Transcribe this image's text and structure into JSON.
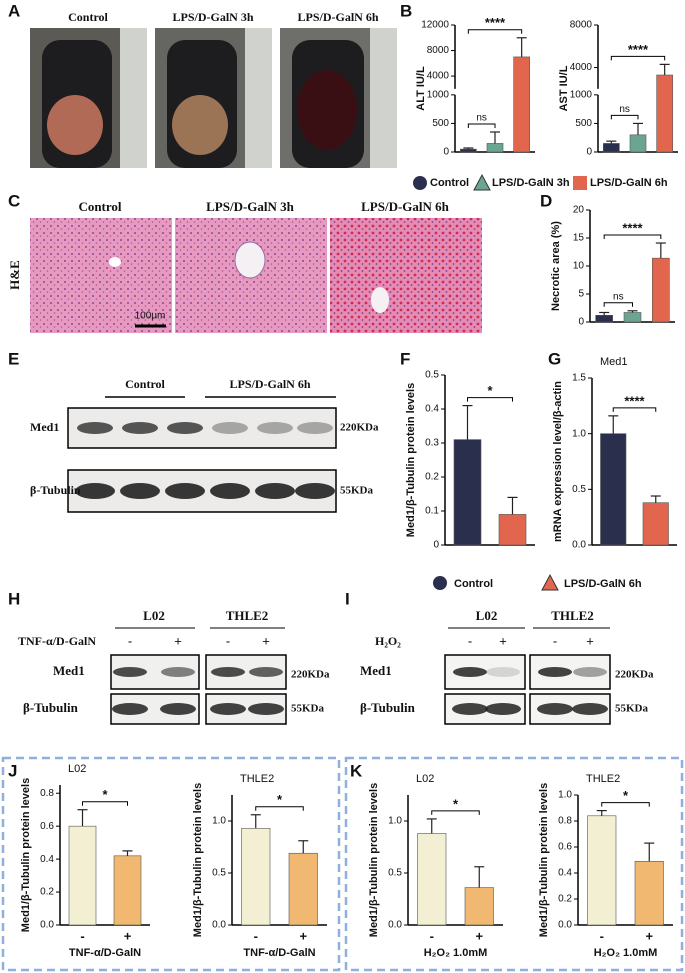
{
  "panel_labels": [
    "A",
    "B",
    "C",
    "D",
    "E",
    "F",
    "G",
    "H",
    "I",
    "J",
    "K"
  ],
  "photos": {
    "labels": [
      "Control",
      "LPS/D-GalN 3h",
      "LPS/D-GalN 6h"
    ]
  },
  "histology": {
    "labels": [
      "Control",
      "LPS/D-GalN 3h",
      "LPS/D-GalN 6h"
    ],
    "stain": "H&E",
    "scale_bar": "100μm"
  },
  "legend_b": [
    {
      "name": "Control",
      "color": "#2b2f4e"
    },
    {
      "name": "LPS/D-GalN 3h",
      "color": "#6aa58f"
    },
    {
      "name": "LPS/D-GalN 6h",
      "color": "#e2664d"
    }
  ],
  "blot_e": {
    "groups": [
      "Control",
      "LPS/D-GalN 6h"
    ],
    "rows": [
      "Med1",
      "β-Tubulin"
    ],
    "sizes": [
      "220KDa",
      "55KDa"
    ]
  },
  "legend_fg": [
    {
      "name": "Control",
      "color": "#2b2f4e"
    },
    {
      "name": "LPS/D-GalN 6h",
      "color": "#e2664d"
    }
  ],
  "blot_h": {
    "lanes": [
      "L02",
      "THLE2"
    ],
    "treatment": "TNF-α/D-GalN",
    "signs": [
      "-",
      "+",
      "-",
      "+"
    ],
    "rows": [
      "Med1",
      "β-Tubulin"
    ],
    "sizes": [
      "220KDa",
      "55KDa"
    ]
  },
  "blot_i": {
    "lanes": [
      "L02",
      "THLE2"
    ],
    "treatment": "H₂O₂",
    "signs": [
      "-",
      "+",
      "-",
      "+"
    ],
    "rows": [
      "Med1",
      "β-Tubulin"
    ],
    "sizes": [
      "220KDa",
      "55KDa"
    ]
  },
  "chart_data": [
    {
      "type": "bar",
      "ylabel": "ALT IU/L",
      "categories": [
        null,
        null,
        null
      ],
      "values": [
        50,
        150,
        7000
      ],
      "errors": [
        20,
        200,
        3000
      ],
      "colors": [
        "#2b2f4e",
        "#6aa58f",
        "#e2664d"
      ],
      "ylim": [
        0,
        12000
      ],
      "ybreak": [
        1000,
        2000
      ],
      "yticks": [
        0,
        500,
        1000,
        4000,
        8000,
        12000
      ],
      "annotations": [
        "ns",
        "****"
      ]
    },
    {
      "type": "bar",
      "ylabel": "AST IU/L",
      "categories": [
        null,
        null,
        null
      ],
      "values": [
        150,
        300,
        3300
      ],
      "errors": [
        40,
        200,
        1000
      ],
      "colors": [
        "#2b2f4e",
        "#6aa58f",
        "#e2664d"
      ],
      "ylim": [
        0,
        8000
      ],
      "ybreak": [
        1000,
        2000
      ],
      "yticks": [
        0,
        500,
        1000,
        4000,
        8000
      ],
      "annotations": [
        "ns",
        "****"
      ]
    },
    {
      "type": "bar",
      "ylabel": "Necrotic area (%)",
      "categories": [
        null,
        null,
        null
      ],
      "values": [
        1.2,
        1.7,
        11.4
      ],
      "errors": [
        0.5,
        0.3,
        2.7
      ],
      "colors": [
        "#2b2f4e",
        "#6aa58f",
        "#e2664d"
      ],
      "ylim": [
        0,
        20
      ],
      "yticks": [
        0,
        5,
        10,
        15,
        20
      ],
      "annotations": [
        "ns",
        "****"
      ]
    },
    {
      "type": "bar",
      "ylabel": "Med1/β-Tubulin protein levels",
      "categories": [
        null,
        null
      ],
      "values": [
        0.31,
        0.09
      ],
      "errors": [
        0.1,
        0.05
      ],
      "colors": [
        "#2b2f4e",
        "#e2664d"
      ],
      "ylim": [
        0,
        0.5
      ],
      "yticks": [
        0,
        0.1,
        0.2,
        0.3,
        0.4,
        0.5
      ],
      "annotations": [
        "*"
      ]
    },
    {
      "type": "bar",
      "title": "Med1",
      "ylabel": "mRNA expression level/β-actin",
      "categories": [
        null,
        null
      ],
      "values": [
        1.0,
        0.38
      ],
      "errors": [
        0.16,
        0.06
      ],
      "colors": [
        "#2b2f4e",
        "#e2664d"
      ],
      "ylim": [
        0,
        1.5
      ],
      "yticks": [
        {
          "value": 0,
          "label": "0.0"
        },
        0.5,
        {
          "value": 1,
          "label": "1.0"
        },
        1.5
      ],
      "annotations": [
        "****"
      ]
    },
    {
      "type": "bar",
      "title": "L02",
      "ylabel": "Med1/β-Tubulin protein levels",
      "xlabel": "TNF-α/D-GalN",
      "categories": [
        "-",
        "+"
      ],
      "values": [
        0.6,
        0.42
      ],
      "errors": [
        0.1,
        0.03
      ],
      "colors": [
        "#f3efd2",
        "#f0b870"
      ],
      "ylim": [
        0,
        0.85
      ],
      "yticks": [
        {
          "value": 0,
          "label": "0.0"
        },
        0.2,
        0.4,
        0.6,
        0.8
      ],
      "annotations": [
        "*"
      ]
    },
    {
      "type": "bar",
      "title": "THLE2",
      "ylabel": "Med1/β-Tubulin protein levels",
      "xlabel": "TNF-α/D-GalN",
      "categories": [
        "-",
        "+"
      ],
      "values": [
        0.93,
        0.69
      ],
      "errors": [
        0.13,
        0.12
      ],
      "colors": [
        "#f3efd2",
        "#f0b870"
      ],
      "ylim": [
        0,
        1.25
      ],
      "yticks": [
        {
          "value": 0,
          "label": "0.0"
        },
        0.5,
        {
          "value": 1,
          "label": "1.0"
        }
      ],
      "annotations": [
        "*"
      ]
    },
    {
      "type": "bar",
      "title": "L02",
      "ylabel": "Med1/β-Tubulin protein levels",
      "xlabel": "H₂O₂ 1.0mM",
      "categories": [
        "-",
        "+"
      ],
      "values": [
        0.88,
        0.36
      ],
      "errors": [
        0.14,
        0.2
      ],
      "colors": [
        "#f3efd2",
        "#f0b870"
      ],
      "ylim": [
        0,
        1.25
      ],
      "yticks": [
        {
          "value": 0,
          "label": "0.0"
        },
        0.5,
        {
          "value": 1,
          "label": "1.0"
        }
      ],
      "annotations": [
        "*"
      ]
    },
    {
      "type": "bar",
      "title": "THLE2",
      "ylabel": "Med1/β-Tubulin protein levels",
      "xlabel": "H₂O₂ 1.0mM",
      "categories": [
        "-",
        "+"
      ],
      "values": [
        0.84,
        0.49
      ],
      "errors": [
        0.04,
        0.14
      ],
      "colors": [
        "#f3efd2",
        "#f0b870"
      ],
      "ylim": [
        0,
        1.0
      ],
      "yticks": [
        {
          "value": 0,
          "label": "0.0"
        },
        0.2,
        0.4,
        0.6,
        0.8,
        {
          "value": 1,
          "label": "1.0"
        }
      ],
      "annotations": [
        "*"
      ]
    }
  ]
}
